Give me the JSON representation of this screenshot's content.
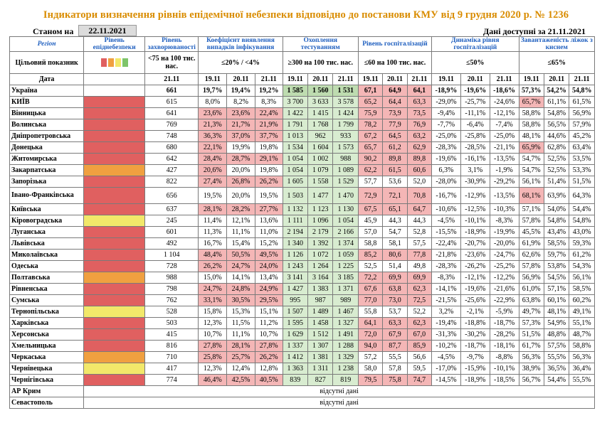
{
  "title": "Індикатори визначення рівнів епідемічної небезпеки відповідно до постанови КМУ від 9 грудня 2020 р. № 1236",
  "as_of_label": "Станом на",
  "as_of_date": "22.11.2021",
  "data_available": "Дані доступні за 21.11.2021",
  "header": {
    "region": "Регіон",
    "target": "Цільовий показник",
    "date": "Дата",
    "col_epid": "Рівень епіднебезпеки",
    "col_morb": "Рівень захворюваності",
    "col_pos": "Коефіцієнт виявлення випадків інфікування",
    "col_test": "Охоплення тестуванням",
    "col_hosp": "Рівень госпіталізацій",
    "col_dyn": "Динаміка рівня госпіталізацій",
    "col_oxy": "Завантаженість ліжок з киснем",
    "t_morb": "<75 на 100 тис. нас.",
    "t_pos": "≤20% / <4%",
    "t_test": "≥300 на 100 тис. нас.",
    "t_hosp": "≤60 на 100 тис. нас.",
    "t_dyn": "≤50%",
    "t_oxy": "≤65%",
    "d1": "19.11",
    "d2": "20.11",
    "d3": "21.11"
  },
  "legend_colors": [
    "#e06060",
    "#f0a040",
    "#f2e86a",
    "#7ec46a"
  ],
  "rows": [
    {
      "name": "Україна",
      "epid": "",
      "morb": "661",
      "pos": [
        "19,7%",
        "19,4%",
        "19,2%"
      ],
      "test": [
        "1 585",
        "1 560",
        "1 531"
      ],
      "hosp": [
        "67,1",
        "64,9",
        "64,1"
      ],
      "dyn": [
        "-18,9%",
        "-19,6%",
        "-18,6%"
      ],
      "oxy": [
        "57,3%",
        "54,2%",
        "54,8%"
      ]
    },
    {
      "name": "КИЇВ",
      "epid": "red",
      "morb": "615",
      "pos": [
        "8,0%",
        "8,2%",
        "8,3%"
      ],
      "test": [
        "3 700",
        "3 633",
        "3 578"
      ],
      "hosp": [
        "65,2",
        "64,4",
        "63,3"
      ],
      "dyn": [
        "-29,0%",
        "-25,7%",
        "-24,6%"
      ],
      "oxy": [
        "65,7%",
        "61,1%",
        "61,5%"
      ]
    },
    {
      "name": "Вінницька",
      "epid": "red",
      "morb": "641",
      "pos": [
        "23,6%",
        "23,6%",
        "22,4%"
      ],
      "test": [
        "1 422",
        "1 415",
        "1 424"
      ],
      "hosp": [
        "75,9",
        "73,9",
        "73,5"
      ],
      "dyn": [
        "-9,4%",
        "-11,1%",
        "-12,1%"
      ],
      "oxy": [
        "58,8%",
        "54,8%",
        "56,9%"
      ]
    },
    {
      "name": "Волинська",
      "epid": "red",
      "morb": "769",
      "pos": [
        "21,3%",
        "21,7%",
        "21,9%"
      ],
      "test": [
        "1 791",
        "1 768",
        "1 799"
      ],
      "hosp": [
        "78,2",
        "77,9",
        "76,9"
      ],
      "dyn": [
        "-7,7%",
        "-6,4%",
        "-7,4%"
      ],
      "oxy": [
        "58,8%",
        "56,5%",
        "57,9%"
      ]
    },
    {
      "name": "Дніпропетровська",
      "epid": "red",
      "morb": "748",
      "pos": [
        "36,3%",
        "37,0%",
        "37,7%"
      ],
      "test": [
        "1 013",
        "962",
        "933"
      ],
      "hosp": [
        "67,2",
        "64,5",
        "63,2"
      ],
      "dyn": [
        "-25,0%",
        "-25,8%",
        "-25,0%"
      ],
      "oxy": [
        "48,1%",
        "44,6%",
        "45,2%"
      ]
    },
    {
      "name": "Донецька",
      "epid": "red",
      "morb": "680",
      "pos": [
        "22,1%",
        "19,9%",
        "19,8%"
      ],
      "test": [
        "1 534",
        "1 604",
        "1 573"
      ],
      "hosp": [
        "65,7",
        "61,2",
        "62,9"
      ],
      "dyn": [
        "-28,3%",
        "-28,5%",
        "-21,1%"
      ],
      "oxy": [
        "65,9%",
        "62,8%",
        "63,4%"
      ]
    },
    {
      "name": "Житомирська",
      "epid": "red",
      "morb": "642",
      "pos": [
        "28,4%",
        "28,7%",
        "29,1%"
      ],
      "test": [
        "1 054",
        "1 002",
        "988"
      ],
      "hosp": [
        "90,2",
        "89,8",
        "89,8"
      ],
      "dyn": [
        "-19,6%",
        "-16,1%",
        "-13,5%"
      ],
      "oxy": [
        "54,7%",
        "52,5%",
        "53,5%"
      ]
    },
    {
      "name": "Закарпатська",
      "epid": "orange",
      "morb": "427",
      "pos": [
        "20,6%",
        "20,0%",
        "19,8%"
      ],
      "test": [
        "1 054",
        "1 079",
        "1 089"
      ],
      "hosp": [
        "62,2",
        "61,5",
        "60,6"
      ],
      "dyn": [
        "6,3%",
        "3,1%",
        "-1,9%"
      ],
      "oxy": [
        "54,7%",
        "52,5%",
        "53,3%"
      ]
    },
    {
      "name": "Запорізька",
      "epid": "red",
      "morb": "822",
      "pos": [
        "27,4%",
        "26,8%",
        "26,2%"
      ],
      "test": [
        "1 605",
        "1 558",
        "1 529"
      ],
      "hosp": [
        "57,7",
        "53,6",
        "52,0"
      ],
      "dyn": [
        "-28,0%",
        "-30,9%",
        "-29,2%"
      ],
      "oxy": [
        "56,1%",
        "51,4%",
        "51,5%"
      ]
    },
    {
      "name": "Івано-Франківська",
      "epid": "red",
      "morb": "656",
      "pos": [
        "19,5%",
        "20,0%",
        "19,5%"
      ],
      "test": [
        "1 503",
        "1 477",
        "1 470"
      ],
      "hosp": [
        "72,9",
        "72,1",
        "70,8"
      ],
      "dyn": [
        "-16,7%",
        "-12,9%",
        "-13,5%"
      ],
      "oxy": [
        "68,1%",
        "63,9%",
        "64,3%"
      ],
      "tall": true
    },
    {
      "name": "Київська",
      "epid": "red",
      "morb": "637",
      "pos": [
        "28,1%",
        "28,2%",
        "27,7%"
      ],
      "test": [
        "1 132",
        "1 123",
        "1 130"
      ],
      "hosp": [
        "67,5",
        "65,1",
        "64,7"
      ],
      "dyn": [
        "-10,6%",
        "-12,5%",
        "-10,3%"
      ],
      "oxy": [
        "57,1%",
        "54,0%",
        "54,4%"
      ]
    },
    {
      "name": "Кіровоградська",
      "epid": "yellow",
      "morb": "245",
      "pos": [
        "11,4%",
        "12,1%",
        "13,6%"
      ],
      "test": [
        "1 111",
        "1 096",
        "1 054"
      ],
      "hosp": [
        "45,9",
        "44,3",
        "44,3"
      ],
      "dyn": [
        "-4,5%",
        "-10,1%",
        "-8,3%"
      ],
      "oxy": [
        "57,8%",
        "54,8%",
        "54,8%"
      ]
    },
    {
      "name": "Луганська",
      "epid": "red",
      "morb": "601",
      "pos": [
        "11,3%",
        "11,1%",
        "11,0%"
      ],
      "test": [
        "2 194",
        "2 179",
        "2 166"
      ],
      "hosp": [
        "57,0",
        "54,7",
        "52,8"
      ],
      "dyn": [
        "-15,5%",
        "-18,9%",
        "-19,9%"
      ],
      "oxy": [
        "45,5%",
        "43,4%",
        "43,0%"
      ]
    },
    {
      "name": "Львівська",
      "epid": "red",
      "morb": "492",
      "pos": [
        "16,7%",
        "15,4%",
        "15,2%"
      ],
      "test": [
        "1 340",
        "1 392",
        "1 374"
      ],
      "hosp": [
        "58,8",
        "58,1",
        "57,5"
      ],
      "dyn": [
        "-22,4%",
        "-20,7%",
        "-20,0%"
      ],
      "oxy": [
        "61,9%",
        "58,5%",
        "59,3%"
      ]
    },
    {
      "name": "Миколаївська",
      "epid": "red",
      "morb": "1 104",
      "pos": [
        "48,4%",
        "50,5%",
        "49,5%"
      ],
      "test": [
        "1 126",
        "1 072",
        "1 059"
      ],
      "hosp": [
        "85,2",
        "80,6",
        "77,8"
      ],
      "dyn": [
        "-21,8%",
        "-23,6%",
        "-24,7%"
      ],
      "oxy": [
        "62,6%",
        "59,7%",
        "61,2%"
      ]
    },
    {
      "name": "Одеська",
      "epid": "red",
      "morb": "728",
      "pos": [
        "26,2%",
        "24,7%",
        "24,0%"
      ],
      "test": [
        "1 243",
        "1 264",
        "1 225"
      ],
      "hosp": [
        "52,5",
        "51,4",
        "49,8"
      ],
      "dyn": [
        "-28,3%",
        "-26,2%",
        "-25,2%"
      ],
      "oxy": [
        "57,8%",
        "53,8%",
        "54,3%"
      ]
    },
    {
      "name": "Полтавська",
      "epid": "orange",
      "morb": "988",
      "pos": [
        "15,0%",
        "14,1%",
        "13,4%"
      ],
      "test": [
        "3 141",
        "3 164",
        "3 185"
      ],
      "hosp": [
        "72,2",
        "69,9",
        "69,9"
      ],
      "dyn": [
        "-8,3%",
        "-12,1%",
        "-12,2%"
      ],
      "oxy": [
        "56,9%",
        "54,5%",
        "56,1%"
      ]
    },
    {
      "name": "Рівненська",
      "epid": "red",
      "morb": "798",
      "pos": [
        "24,7%",
        "24,8%",
        "24,9%"
      ],
      "test": [
        "1 427",
        "1 383",
        "1 371"
      ],
      "hosp": [
        "67,6",
        "63,8",
        "62,3"
      ],
      "dyn": [
        "-14,1%",
        "-19,6%",
        "-21,6%"
      ],
      "oxy": [
        "61,0%",
        "57,1%",
        "58,5%"
      ]
    },
    {
      "name": "Сумська",
      "epid": "red",
      "morb": "762",
      "pos": [
        "33,1%",
        "30,5%",
        "29,5%"
      ],
      "test": [
        "995",
        "987",
        "989"
      ],
      "hosp": [
        "77,0",
        "73,0",
        "72,5"
      ],
      "dyn": [
        "-21,5%",
        "-25,6%",
        "-22,9%"
      ],
      "oxy": [
        "63,8%",
        "60,1%",
        "60,2%"
      ]
    },
    {
      "name": "Тернопільська",
      "epid": "yellow",
      "morb": "528",
      "pos": [
        "15,8%",
        "15,3%",
        "15,1%"
      ],
      "test": [
        "1 507",
        "1 489",
        "1 467"
      ],
      "hosp": [
        "55,8",
        "53,7",
        "52,2"
      ],
      "dyn": [
        "3,2%",
        "-2,1%",
        "-5,9%"
      ],
      "oxy": [
        "49,7%",
        "48,1%",
        "49,1%"
      ]
    },
    {
      "name": "Харківська",
      "epid": "red",
      "morb": "503",
      "pos": [
        "12,3%",
        "11,5%",
        "11,2%"
      ],
      "test": [
        "1 595",
        "1 458",
        "1 327"
      ],
      "hosp": [
        "64,1",
        "63,3",
        "62,3"
      ],
      "dyn": [
        "-19,4%",
        "-18,8%",
        "-18,7%"
      ],
      "oxy": [
        "57,3%",
        "54,9%",
        "55,1%"
      ]
    },
    {
      "name": "Херсонська",
      "epid": "red",
      "morb": "415",
      "pos": [
        "10,7%",
        "11,1%",
        "10,7%"
      ],
      "test": [
        "1 629",
        "1 512",
        "1 491"
      ],
      "hosp": [
        "72,0",
        "67,9",
        "67,0"
      ],
      "dyn": [
        "-31,3%",
        "-30,2%",
        "-28,2%"
      ],
      "oxy": [
        "51,5%",
        "48,8%",
        "48,7%"
      ]
    },
    {
      "name": "Хмельницька",
      "epid": "red",
      "morb": "816",
      "pos": [
        "27,8%",
        "28,1%",
        "27,8%"
      ],
      "test": [
        "1 337",
        "1 307",
        "1 288"
      ],
      "hosp": [
        "94,0",
        "87,7",
        "85,9"
      ],
      "dyn": [
        "-10,2%",
        "-18,7%",
        "-18,1%"
      ],
      "oxy": [
        "61,7%",
        "57,5%",
        "58,8%"
      ]
    },
    {
      "name": "Черкаська",
      "epid": "orange",
      "morb": "710",
      "pos": [
        "25,8%",
        "25,7%",
        "26,2%"
      ],
      "test": [
        "1 412",
        "1 381",
        "1 329"
      ],
      "hosp": [
        "57,2",
        "55,5",
        "56,6"
      ],
      "dyn": [
        "-4,5%",
        "-9,7%",
        "-8,8%"
      ],
      "oxy": [
        "56,3%",
        "55,5%",
        "56,3%"
      ]
    },
    {
      "name": "Чернівецька",
      "epid": "yellow",
      "morb": "417",
      "pos": [
        "12,3%",
        "12,4%",
        "12,8%"
      ],
      "test": [
        "1 363",
        "1 311",
        "1 238"
      ],
      "hosp": [
        "58,0",
        "57,8",
        "59,5"
      ],
      "dyn": [
        "-17,0%",
        "-15,9%",
        "-10,1%"
      ],
      "oxy": [
        "38,9%",
        "36,5%",
        "36,4%"
      ]
    },
    {
      "name": "Чернігівська",
      "epid": "red",
      "morb": "774",
      "pos": [
        "46,4%",
        "42,5%",
        "40,5%"
      ],
      "test": [
        "839",
        "827",
        "819"
      ],
      "hosp": [
        "79,5",
        "75,8",
        "74,7"
      ],
      "dyn": [
        "-14,5%",
        "-18,9%",
        "-18,5%"
      ],
      "oxy": [
        "56,7%",
        "54,4%",
        "55,5%"
      ]
    }
  ],
  "na_rows": [
    {
      "name": "АР Крим",
      "text": "відсутні дані"
    },
    {
      "name": "Севастополь",
      "text": "відсутні дані"
    }
  ],
  "highlight": {
    "pos_red_threshold": 20,
    "hosp_red_threshold": 60,
    "oxy_red_threshold": 65
  }
}
